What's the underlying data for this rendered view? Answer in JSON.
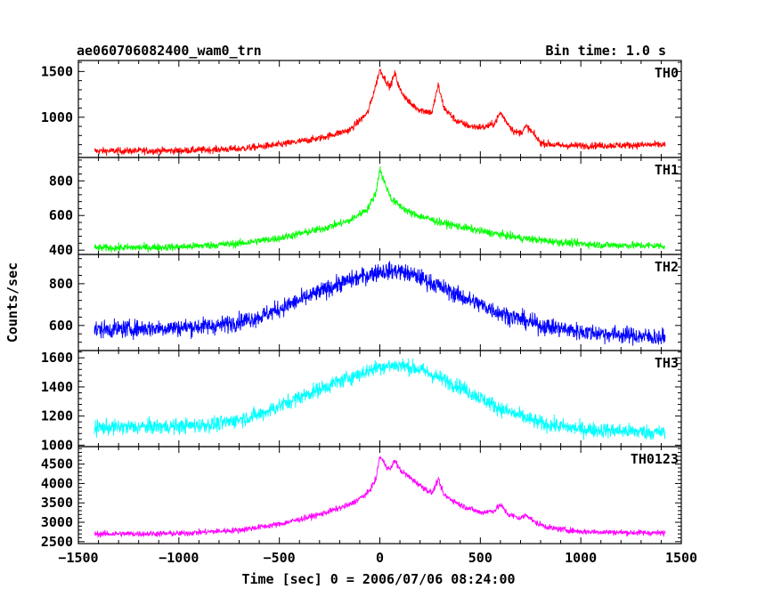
{
  "header": {
    "title": "ae060706082400_wam0_trn",
    "bin_time": "Bin time: 1.0 s"
  },
  "chart_data": {
    "type": "line",
    "xlabel": "Time [sec] 0 = 2006/07/06 08:24:00",
    "ylabel": "Counts/sec",
    "xlim": [
      -1500,
      1500
    ],
    "x_data_range": [
      -1420,
      1420
    ],
    "xticks": [
      -1500,
      -1000,
      -500,
      0,
      500,
      1000,
      1500
    ],
    "xtick_labels": [
      "−1500",
      "−1000",
      "−500",
      "0",
      "500",
      "1000",
      "1500"
    ],
    "panels": [
      {
        "name": "TH0",
        "color": "#ff0000",
        "ylim": [
          560,
          1620
        ],
        "yticks": [
          1000,
          1500
        ],
        "ytick_labels": [
          "1000",
          "1500"
        ],
        "noise": 28,
        "curve": [
          [
            -1420,
            630
          ],
          [
            -1000,
            635
          ],
          [
            -700,
            655
          ],
          [
            -500,
            700
          ],
          [
            -300,
            770
          ],
          [
            -150,
            860
          ],
          [
            -60,
            1050
          ],
          [
            -20,
            1350
          ],
          [
            0,
            1520
          ],
          [
            25,
            1420
          ],
          [
            50,
            1330
          ],
          [
            75,
            1480
          ],
          [
            100,
            1300
          ],
          [
            150,
            1150
          ],
          [
            200,
            1080
          ],
          [
            260,
            1050
          ],
          [
            290,
            1350
          ],
          [
            320,
            1100
          ],
          [
            380,
            960
          ],
          [
            450,
            900
          ],
          [
            520,
            890
          ],
          [
            570,
            930
          ],
          [
            600,
            1050
          ],
          [
            630,
            950
          ],
          [
            670,
            840
          ],
          [
            700,
            830
          ],
          [
            730,
            900
          ],
          [
            760,
            830
          ],
          [
            800,
            720
          ],
          [
            900,
            690
          ],
          [
            1100,
            690
          ],
          [
            1420,
            700
          ]
        ]
      },
      {
        "name": "TH1",
        "color": "#00ff00",
        "ylim": [
          375,
          935
        ],
        "yticks": [
          400,
          600,
          800
        ],
        "ytick_labels": [
          "400",
          "600",
          "800"
        ],
        "noise": 16,
        "curve": [
          [
            -1420,
            412
          ],
          [
            -1000,
            418
          ],
          [
            -700,
            438
          ],
          [
            -500,
            470
          ],
          [
            -300,
            520
          ],
          [
            -150,
            570
          ],
          [
            -60,
            640
          ],
          [
            -20,
            730
          ],
          [
            0,
            870
          ],
          [
            20,
            800
          ],
          [
            60,
            690
          ],
          [
            150,
            615
          ],
          [
            300,
            560
          ],
          [
            500,
            510
          ],
          [
            700,
            470
          ],
          [
            900,
            445
          ],
          [
            1100,
            430
          ],
          [
            1420,
            425
          ]
        ]
      },
      {
        "name": "TH2",
        "color": "#0000ff",
        "ylim": [
          480,
          940
        ],
        "yticks": [
          600,
          800
        ],
        "ytick_labels": [
          "600",
          "800"
        ],
        "noise": 30,
        "curve": [
          [
            -1420,
            580
          ],
          [
            -1000,
            590
          ],
          [
            -800,
            600
          ],
          [
            -600,
            640
          ],
          [
            -400,
            720
          ],
          [
            -200,
            800
          ],
          [
            0,
            860
          ],
          [
            100,
            860
          ],
          [
            200,
            830
          ],
          [
            400,
            740
          ],
          [
            600,
            660
          ],
          [
            800,
            600
          ],
          [
            1000,
            570
          ],
          [
            1420,
            540
          ]
        ]
      },
      {
        "name": "TH3",
        "color": "#00ffff",
        "ylim": [
          990,
          1650
        ],
        "yticks": [
          1000,
          1200,
          1400,
          1600
        ],
        "ytick_labels": [
          "1000",
          "1200",
          "1400",
          "1600"
        ],
        "noise": 38,
        "curve": [
          [
            -1420,
            1120
          ],
          [
            -1000,
            1130
          ],
          [
            -800,
            1145
          ],
          [
            -600,
            1210
          ],
          [
            -400,
            1330
          ],
          [
            -200,
            1440
          ],
          [
            0,
            1540
          ],
          [
            100,
            1550
          ],
          [
            200,
            1520
          ],
          [
            400,
            1400
          ],
          [
            600,
            1250
          ],
          [
            800,
            1150
          ],
          [
            1000,
            1110
          ],
          [
            1420,
            1085
          ]
        ]
      },
      {
        "name": "TH0123",
        "color": "#ff00ff",
        "ylim": [
          2450,
          4950
        ],
        "yticks": [
          2500,
          3000,
          3500,
          4000,
          4500
        ],
        "ytick_labels": [
          "2500",
          "3000",
          "3500",
          "4000",
          "4500"
        ],
        "noise": 55,
        "curve": [
          [
            -1420,
            2700
          ],
          [
            -1000,
            2710
          ],
          [
            -700,
            2800
          ],
          [
            -500,
            2950
          ],
          [
            -300,
            3200
          ],
          [
            -150,
            3450
          ],
          [
            -60,
            3750
          ],
          [
            -20,
            4100
          ],
          [
            0,
            4700
          ],
          [
            25,
            4500
          ],
          [
            50,
            4350
          ],
          [
            75,
            4600
          ],
          [
            100,
            4350
          ],
          [
            150,
            4150
          ],
          [
            200,
            3950
          ],
          [
            260,
            3750
          ],
          [
            290,
            4100
          ],
          [
            320,
            3700
          ],
          [
            400,
            3450
          ],
          [
            500,
            3250
          ],
          [
            570,
            3300
          ],
          [
            600,
            3450
          ],
          [
            640,
            3200
          ],
          [
            700,
            3100
          ],
          [
            730,
            3200
          ],
          [
            770,
            3000
          ],
          [
            850,
            2850
          ],
          [
            1000,
            2760
          ],
          [
            1420,
            2720
          ]
        ]
      }
    ]
  }
}
